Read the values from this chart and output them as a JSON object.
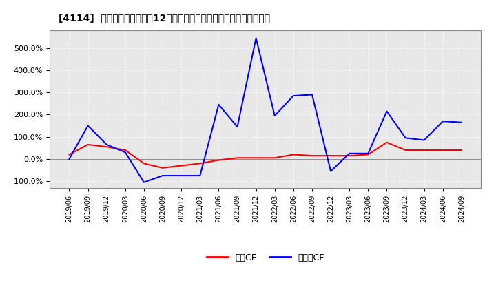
{
  "title": "[4114]  キャッシュフローの12か月移動合計の対前年同期増減率の推移",
  "legend_labels": [
    "営業CF",
    "フリーCF"
  ],
  "line_colors": [
    "#ff0000",
    "#0000ff"
  ],
  "ylim": [
    -130,
    580
  ],
  "yticks": [
    -100.0,
    0.0,
    100.0,
    200.0,
    300.0,
    400.0,
    500.0
  ],
  "ytick_labels": [
    "-100.0%",
    "0.0%",
    "100.0%",
    "200.0%",
    "300.0%",
    "400.0%",
    "500.0%"
  ],
  "background_color": "#ffffff",
  "plot_bg_color": "#e8e8e8",
  "grid_color": "#ffffff",
  "dates": [
    "2019/06",
    "2019/09",
    "2019/12",
    "2020/03",
    "2020/06",
    "2020/09",
    "2020/12",
    "2021/03",
    "2021/06",
    "2021/09",
    "2021/12",
    "2022/03",
    "2022/06",
    "2022/09",
    "2022/12",
    "2023/03",
    "2023/06",
    "2023/09",
    "2023/12",
    "2024/03",
    "2024/06",
    "2024/09"
  ],
  "operating_cf": [
    20.0,
    65.0,
    55.0,
    40.0,
    -20.0,
    -40.0,
    -30.0,
    -20.0,
    -5.0,
    5.0,
    5.0,
    5.0,
    20.0,
    15.0,
    15.0,
    15.0,
    20.0,
    75.0,
    40.0,
    40.0,
    40.0,
    40.0
  ],
  "free_cf": [
    0.0,
    150.0,
    65.0,
    30.0,
    -105.0,
    -75.0,
    -75.0,
    -75.0,
    245.0,
    145.0,
    545.0,
    195.0,
    285.0,
    290.0,
    -55.0,
    25.0,
    25.0,
    215.0,
    95.0,
    85.0,
    170.0,
    165.0
  ]
}
